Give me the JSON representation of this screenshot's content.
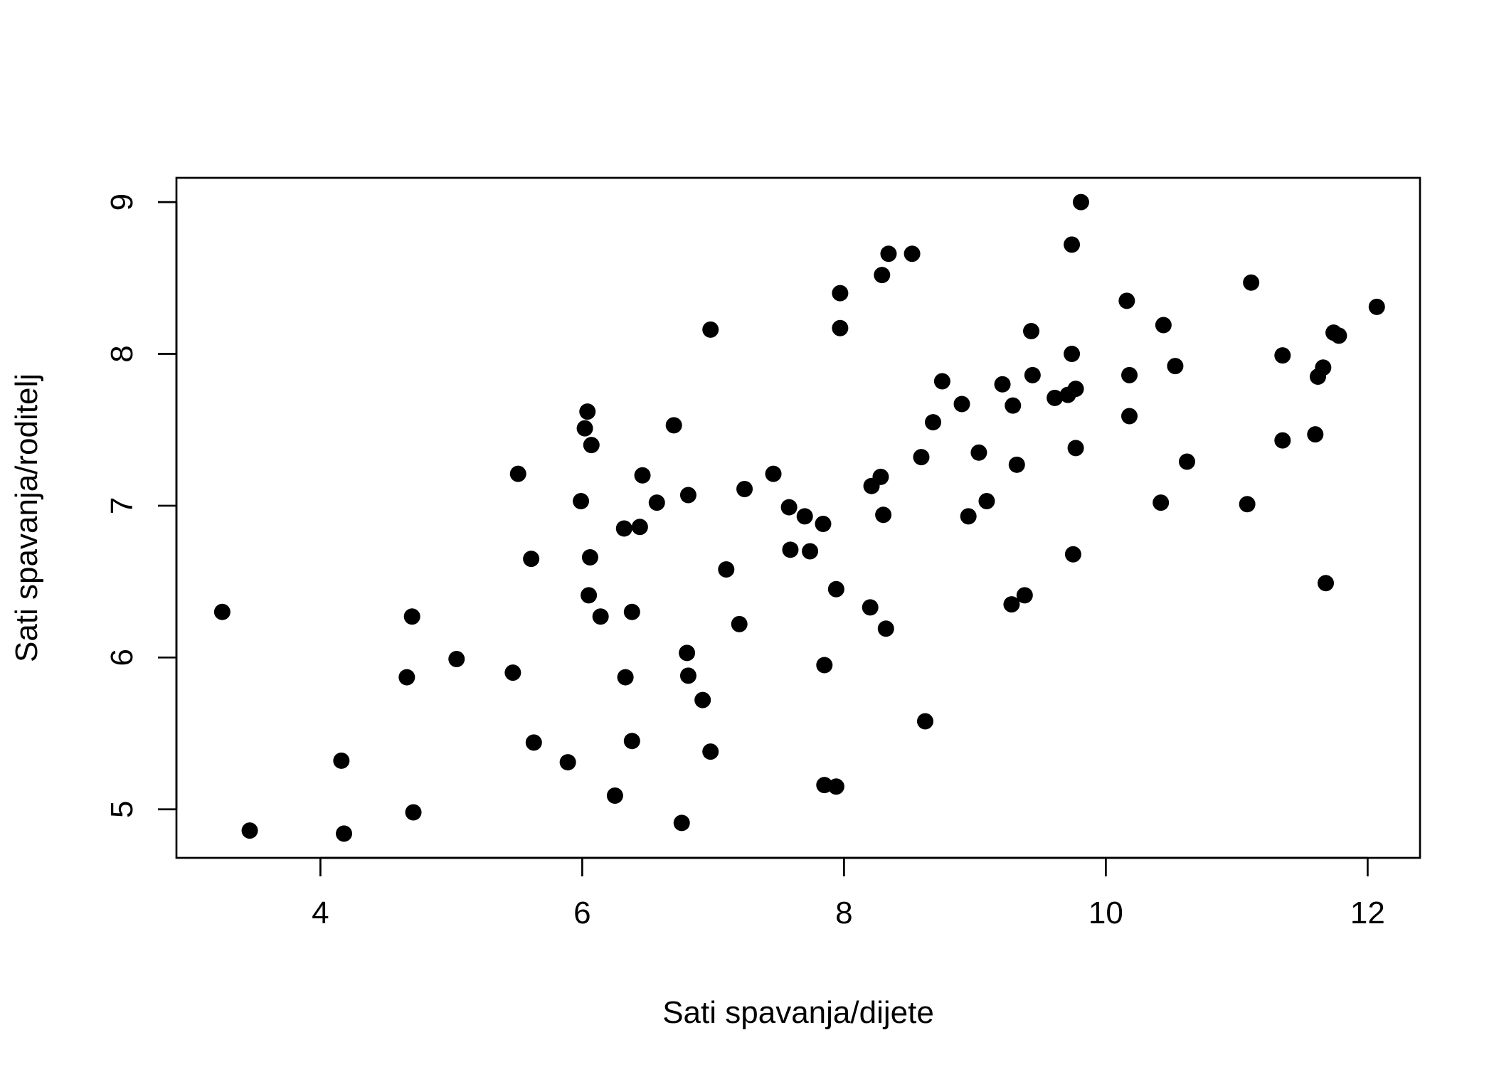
{
  "chart_data": {
    "type": "scatter",
    "title": "",
    "xlabel": "Sati spavanja/dijete",
    "ylabel": "Sati spavanja/roditelj",
    "xlim": [
      2.9,
      12.4
    ],
    "ylim": [
      4.68,
      9.16
    ],
    "xticks": [
      4,
      6,
      8,
      10,
      12
    ],
    "yticks": [
      5,
      6,
      7,
      8,
      9
    ],
    "grid": false,
    "legend": "none",
    "point_color": "#000000",
    "points": [
      {
        "x": 3.25,
        "y": 6.3
      },
      {
        "x": 3.46,
        "y": 4.86
      },
      {
        "x": 4.16,
        "y": 5.32
      },
      {
        "x": 4.18,
        "y": 4.84
      },
      {
        "x": 4.66,
        "y": 5.87
      },
      {
        "x": 4.7,
        "y": 6.27
      },
      {
        "x": 4.71,
        "y": 4.98
      },
      {
        "x": 5.04,
        "y": 5.99
      },
      {
        "x": 5.47,
        "y": 5.9
      },
      {
        "x": 5.51,
        "y": 7.21
      },
      {
        "x": 5.61,
        "y": 6.65
      },
      {
        "x": 5.63,
        "y": 5.44
      },
      {
        "x": 5.89,
        "y": 5.31
      },
      {
        "x": 5.99,
        "y": 7.03
      },
      {
        "x": 6.02,
        "y": 7.51
      },
      {
        "x": 6.04,
        "y": 7.62
      },
      {
        "x": 6.05,
        "y": 6.41
      },
      {
        "x": 6.06,
        "y": 6.66
      },
      {
        "x": 6.07,
        "y": 7.4
      },
      {
        "x": 6.14,
        "y": 6.27
      },
      {
        "x": 6.25,
        "y": 5.09
      },
      {
        "x": 6.32,
        "y": 6.85
      },
      {
        "x": 6.33,
        "y": 5.87
      },
      {
        "x": 6.38,
        "y": 6.3
      },
      {
        "x": 6.38,
        "y": 5.45
      },
      {
        "x": 6.44,
        "y": 6.86
      },
      {
        "x": 6.46,
        "y": 7.2
      },
      {
        "x": 6.57,
        "y": 7.02
      },
      {
        "x": 6.7,
        "y": 7.53
      },
      {
        "x": 6.76,
        "y": 4.91
      },
      {
        "x": 6.8,
        "y": 6.03
      },
      {
        "x": 6.81,
        "y": 7.07
      },
      {
        "x": 6.81,
        "y": 5.88
      },
      {
        "x": 6.92,
        "y": 5.72
      },
      {
        "x": 6.98,
        "y": 8.16
      },
      {
        "x": 6.98,
        "y": 5.38
      },
      {
        "x": 7.1,
        "y": 6.58
      },
      {
        "x": 7.2,
        "y": 6.22
      },
      {
        "x": 7.24,
        "y": 7.11
      },
      {
        "x": 7.46,
        "y": 7.21
      },
      {
        "x": 7.58,
        "y": 6.99
      },
      {
        "x": 7.59,
        "y": 6.71
      },
      {
        "x": 7.7,
        "y": 6.93
      },
      {
        "x": 7.74,
        "y": 6.7
      },
      {
        "x": 7.84,
        "y": 6.88
      },
      {
        "x": 7.85,
        "y": 5.95
      },
      {
        "x": 7.85,
        "y": 5.16
      },
      {
        "x": 7.94,
        "y": 6.45
      },
      {
        "x": 7.94,
        "y": 5.15
      },
      {
        "x": 7.97,
        "y": 8.4
      },
      {
        "x": 7.97,
        "y": 8.17
      },
      {
        "x": 8.2,
        "y": 6.33
      },
      {
        "x": 8.21,
        "y": 7.13
      },
      {
        "x": 8.28,
        "y": 7.19
      },
      {
        "x": 8.29,
        "y": 8.52
      },
      {
        "x": 8.3,
        "y": 6.94
      },
      {
        "x": 8.32,
        "y": 6.19
      },
      {
        "x": 8.34,
        "y": 8.66
      },
      {
        "x": 8.52,
        "y": 8.66
      },
      {
        "x": 8.59,
        "y": 7.32
      },
      {
        "x": 8.62,
        "y": 5.58
      },
      {
        "x": 8.68,
        "y": 7.55
      },
      {
        "x": 8.75,
        "y": 7.82
      },
      {
        "x": 8.9,
        "y": 7.67
      },
      {
        "x": 8.95,
        "y": 6.93
      },
      {
        "x": 9.03,
        "y": 7.35
      },
      {
        "x": 9.09,
        "y": 7.03
      },
      {
        "x": 9.21,
        "y": 7.8
      },
      {
        "x": 9.28,
        "y": 6.35
      },
      {
        "x": 9.29,
        "y": 7.66
      },
      {
        "x": 9.32,
        "y": 7.27
      },
      {
        "x": 9.38,
        "y": 6.41
      },
      {
        "x": 9.43,
        "y": 8.15
      },
      {
        "x": 9.44,
        "y": 7.86
      },
      {
        "x": 9.61,
        "y": 7.71
      },
      {
        "x": 9.71,
        "y": 7.73
      },
      {
        "x": 9.74,
        "y": 8.72
      },
      {
        "x": 9.74,
        "y": 8.0
      },
      {
        "x": 9.75,
        "y": 6.68
      },
      {
        "x": 9.77,
        "y": 7.77
      },
      {
        "x": 9.77,
        "y": 7.38
      },
      {
        "x": 9.81,
        "y": 9.0
      },
      {
        "x": 10.16,
        "y": 8.35
      },
      {
        "x": 10.18,
        "y": 7.86
      },
      {
        "x": 10.18,
        "y": 7.59
      },
      {
        "x": 10.42,
        "y": 7.02
      },
      {
        "x": 10.44,
        "y": 8.19
      },
      {
        "x": 10.53,
        "y": 7.92
      },
      {
        "x": 10.62,
        "y": 7.29
      },
      {
        "x": 11.08,
        "y": 7.01
      },
      {
        "x": 11.11,
        "y": 8.47
      },
      {
        "x": 11.35,
        "y": 7.99
      },
      {
        "x": 11.35,
        "y": 7.43
      },
      {
        "x": 11.6,
        "y": 7.47
      },
      {
        "x": 11.62,
        "y": 7.85
      },
      {
        "x": 11.66,
        "y": 7.91
      },
      {
        "x": 11.68,
        "y": 6.49
      },
      {
        "x": 11.74,
        "y": 8.14
      },
      {
        "x": 11.78,
        "y": 8.12
      },
      {
        "x": 12.07,
        "y": 8.31
      }
    ]
  }
}
